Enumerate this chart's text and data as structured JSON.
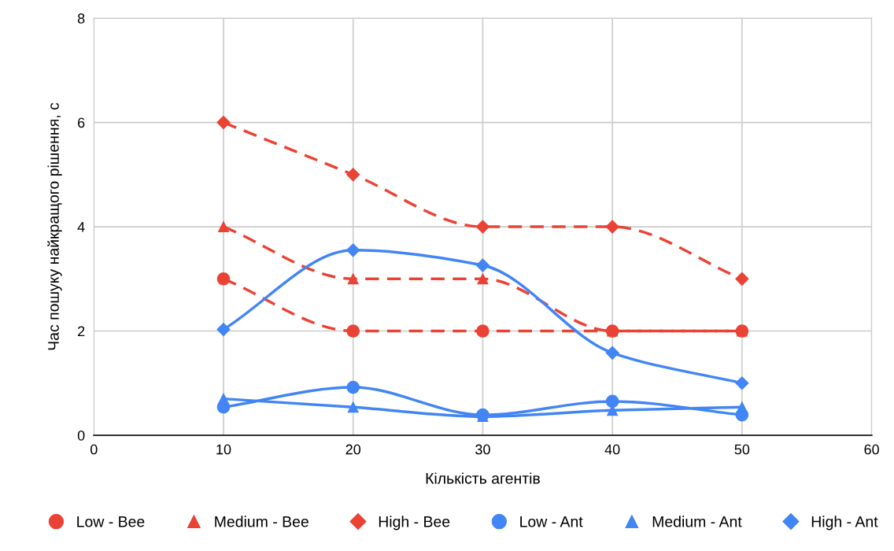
{
  "chart_data": {
    "type": "line",
    "xlabel": "Кількість агентів",
    "ylabel": "Час пошуку найкращого рішення, с",
    "x": [
      10,
      20,
      30,
      40,
      50
    ],
    "series": [
      {
        "name": "Low - Bee",
        "color": "#ea4335",
        "marker": "circle",
        "line_style": "dashed",
        "values": [
          3,
          2,
          2,
          2,
          2
        ]
      },
      {
        "name": "Medium - Bee",
        "color": "#ea4335",
        "marker": "triangle",
        "line_style": "dashed",
        "values": [
          4,
          3,
          3,
          2,
          2
        ]
      },
      {
        "name": "High - Bee",
        "color": "#ea4335",
        "marker": "diamond",
        "line_style": "dashed",
        "values": [
          6,
          5,
          4,
          4,
          3
        ]
      },
      {
        "name": "Low - Ant",
        "color": "#4285f4",
        "marker": "circle",
        "line_style": "solid",
        "values": [
          0.54,
          0.92,
          0.39,
          0.65,
          0.39
        ]
      },
      {
        "name": "Medium - Ant",
        "color": "#4285f4",
        "marker": "triangle",
        "line_style": "solid",
        "values": [
          0.7,
          0.54,
          0.36,
          0.48,
          0.54
        ]
      },
      {
        "name": "High - Ant",
        "color": "#4285f4",
        "marker": "diamond",
        "line_style": "solid",
        "values": [
          2.03,
          3.55,
          3.26,
          1.58,
          1.0
        ]
      }
    ],
    "xlim": [
      0,
      60
    ],
    "xticks": [
      0,
      10,
      20,
      30,
      40,
      50,
      60
    ],
    "ylim": [
      0,
      8
    ],
    "yticks": [
      0,
      2,
      4,
      6,
      8
    ],
    "grid": true,
    "legend": "bottom"
  }
}
